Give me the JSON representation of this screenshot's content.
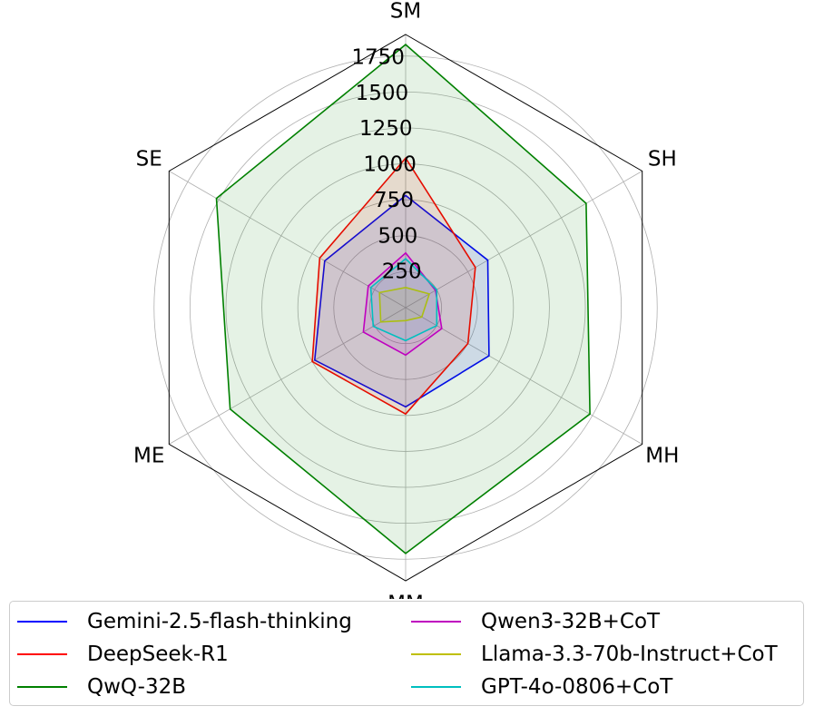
{
  "chart_data": {
    "type": "radar",
    "axes": [
      "SM",
      "SH",
      "MH",
      "MM",
      "ME",
      "SE"
    ],
    "rlim": [
      0,
      1900
    ],
    "rticks": [
      250,
      500,
      750,
      1000,
      1250,
      1500,
      1750
    ],
    "rtick_labels": [
      "250",
      "500",
      "750",
      "1000",
      "1250",
      "1500",
      "1750"
    ],
    "grid": true,
    "legend_position": "bottom",
    "series": [
      {
        "name": "Gemini-2.5-flash-thinking",
        "color": "#0000ff",
        "values": [
          780,
          660,
          670,
          690,
          730,
          650
        ]
      },
      {
        "name": "DeepSeek-R1",
        "color": "#ff0000",
        "values": [
          1040,
          560,
          500,
          740,
          750,
          690
        ]
      },
      {
        "name": "QwQ-32B",
        "color": "#008000",
        "values": [
          1830,
          1450,
          1480,
          1710,
          1410,
          1520
        ]
      },
      {
        "name": "Qwen3-32B+CoT",
        "color": "#bf00bf",
        "values": [
          380,
          240,
          290,
          330,
          340,
          300
        ]
      },
      {
        "name": "Llama-3.3-70b-Instruct+CoT",
        "color": "#bfbf00",
        "values": [
          140,
          190,
          130,
          90,
          200,
          210
        ]
      },
      {
        "name": "GPT-4o-0806+CoT",
        "color": "#00bfbf",
        "values": [
          340,
          250,
          250,
          230,
          260,
          280
        ]
      }
    ]
  }
}
